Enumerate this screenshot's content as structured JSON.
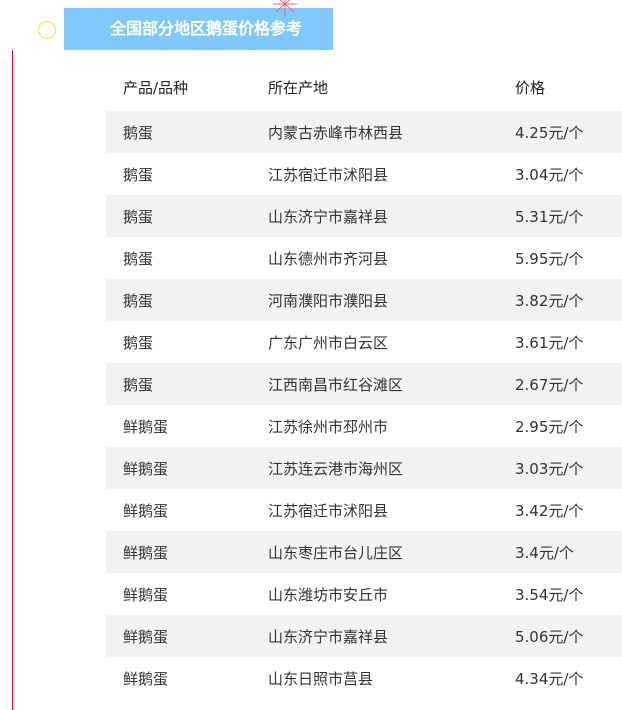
{
  "title": "全国部分地区鹅蛋价格参考",
  "colors": {
    "banner": "#7ec8fb",
    "accent_line": "#e60012"
  },
  "table": {
    "headers": [
      "产品/品种",
      "所在产地",
      "价格"
    ],
    "rows": [
      [
        "鹅蛋",
        "内蒙古赤峰市林西县",
        "4.25元/个"
      ],
      [
        "鹅蛋",
        "江苏宿迁市沭阳县",
        "3.04元/个"
      ],
      [
        "鹅蛋",
        "山东济宁市嘉祥县",
        "5.31元/个"
      ],
      [
        "鹅蛋",
        "山东德州市齐河县",
        "5.95元/个"
      ],
      [
        "鹅蛋",
        "河南濮阳市濮阳县",
        "3.82元/个"
      ],
      [
        "鹅蛋",
        "广东广州市白云区",
        "3.61元/个"
      ],
      [
        "鹅蛋",
        "江西南昌市红谷滩区",
        "2.67元/个"
      ],
      [
        "鲜鹅蛋",
        "江苏徐州市邳州市",
        "2.95元/个"
      ],
      [
        "鲜鹅蛋",
        "江苏连云港市海州区",
        "3.03元/个"
      ],
      [
        "鲜鹅蛋",
        "江苏宿迁市沭阳县",
        "3.42元/个"
      ],
      [
        "鲜鹅蛋",
        "山东枣庄市台儿庄区",
        "3.4元/个"
      ],
      [
        "鲜鹅蛋",
        "山东潍坊市安丘市",
        "3.54元/个"
      ],
      [
        "鲜鹅蛋",
        "山东济宁市嘉祥县",
        "5.06元/个"
      ],
      [
        "鲜鹅蛋",
        "山东日照市莒县",
        "4.34元/个"
      ]
    ]
  }
}
